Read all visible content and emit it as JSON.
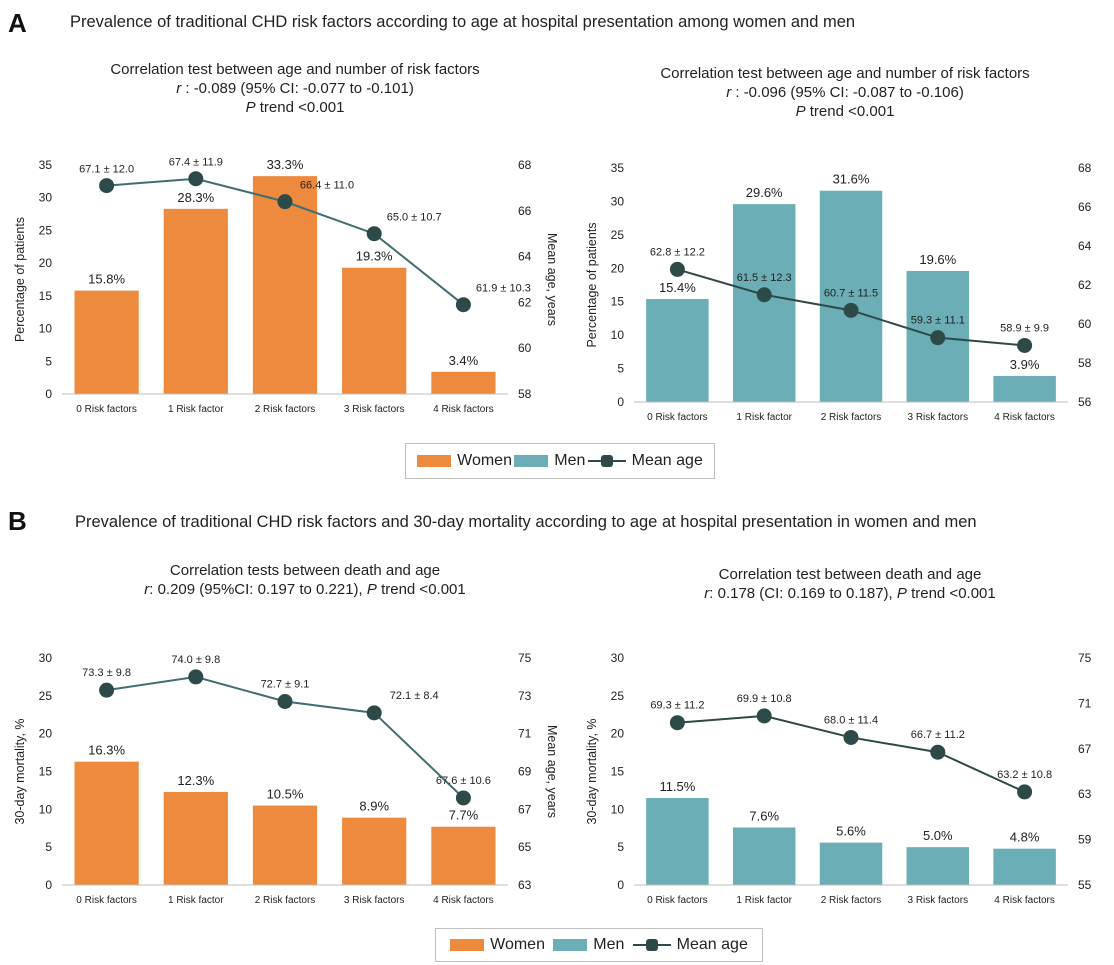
{
  "panels": {
    "a": {
      "letter": "A",
      "title": "Prevalence of traditional CHD risk factors according to age at hospital presentation among women and men",
      "women_corr": {
        "line1": "Correlation test between age and number of risk factors",
        "r_label": "r",
        "line2": " : -0.089 (95% CI: -0.077 to -0.101)",
        "p_label": "P",
        "line3": " trend <0.001"
      },
      "men_corr": {
        "line1": "Correlation test between age and number of risk factors",
        "r_label": "r",
        "line2": " : -0.096 (95% CI: -0.087 to -0.106)",
        "p_label": "P",
        "line3": " trend <0.001"
      }
    },
    "b": {
      "letter": "B",
      "title": "Prevalence of traditional CHD risk factors and 30-day mortality according to age at hospital presentation in women and men",
      "women_corr": {
        "line1": "Correlation tests between death and age",
        "r_label": "r",
        "line2": ": 0.209 (95%CI: 0.197 to 0.221), ",
        "p_label": "P",
        "line3": " trend <0.001"
      },
      "men_corr": {
        "line1": "Correlation test between death and age",
        "r_label": "r",
        "line2": ": 0.178 (CI: 0.169 to 0.187), ",
        "p_label": "P",
        "line3": " trend <0.001"
      }
    }
  },
  "legend": {
    "women": "Women",
    "men": "Men",
    "mean_age": "Mean age"
  },
  "colors": {
    "women": "#ee8a3d",
    "men": "#6baeb5",
    "mean_age_line_women": "#3f6e74",
    "mean_age_line_men": "#2d4a48",
    "marker": "#2d4a48"
  },
  "chart_data": [
    {
      "id": "a-women",
      "type": "bar",
      "categories": [
        "0 Risk factors",
        "1 Risk factor",
        "2 Risk factors",
        "3 Risk factors",
        "4 Risk factors"
      ],
      "series": [
        {
          "name": "Women",
          "values": [
            15.8,
            28.3,
            33.3,
            19.3,
            3.4
          ],
          "labels": [
            "15.8%",
            "28.3%",
            "33.3%",
            "19.3%",
            "3.4%"
          ]
        },
        {
          "name": "Mean age",
          "axis": "right",
          "values": [
            67.1,
            67.4,
            66.4,
            65.0,
            61.9
          ],
          "labels": [
            "67.1 ± 12.0",
            "67.4 ± 11.9",
            "66.4 ± 11.0",
            "65.0 ± 10.7",
            "61.9 ± 10.3"
          ]
        }
      ],
      "ylabel": "Percentage of patients",
      "ylim": [
        0,
        35
      ],
      "yticks": [
        0,
        5,
        10,
        15,
        20,
        25,
        30,
        35
      ],
      "y2label": "Mean age, years",
      "y2lim": [
        58,
        68
      ],
      "y2ticks": [
        58,
        60,
        62,
        64,
        66,
        68
      ]
    },
    {
      "id": "a-men",
      "type": "bar",
      "categories": [
        "0 Risk factors",
        "1 Risk factor",
        "2 Risk factors",
        "3 Risk factors",
        "4 Risk factors"
      ],
      "series": [
        {
          "name": "Men",
          "values": [
            15.4,
            29.6,
            31.6,
            19.6,
            3.9
          ],
          "labels": [
            "15.4%",
            "29.6%",
            "31.6%",
            "19.6%",
            "3.9%"
          ]
        },
        {
          "name": "Mean age",
          "axis": "right",
          "values": [
            62.8,
            61.5,
            60.7,
            59.3,
            58.9
          ],
          "labels": [
            "62.8 ± 12.2",
            "61.5 ± 12.3",
            "60.7 ± 11.5",
            "59.3 ± 11.1",
            "58.9 ± 9.9"
          ]
        }
      ],
      "ylabel": "Percentage of patients",
      "ylim": [
        0,
        35
      ],
      "yticks": [
        0,
        5,
        10,
        15,
        20,
        25,
        30,
        35
      ],
      "y2label": "",
      "y2lim": [
        56,
        68
      ],
      "y2ticks": [
        56,
        58,
        60,
        62,
        64,
        66,
        68
      ]
    },
    {
      "id": "b-women",
      "type": "bar",
      "categories": [
        "0 Risk factors",
        "1 Risk factor",
        "2 Risk factors",
        "3 Risk factors",
        "4 Risk factors"
      ],
      "series": [
        {
          "name": "Women",
          "values": [
            16.3,
            12.3,
            10.5,
            8.9,
            7.7
          ],
          "labels": [
            "16.3%",
            "12.3%",
            "10.5%",
            "8.9%",
            "7.7%"
          ]
        },
        {
          "name": "Mean age",
          "axis": "right",
          "values": [
            73.3,
            74.0,
            72.7,
            72.1,
            67.6
          ],
          "labels": [
            "73.3 ± 9.8",
            "74.0 ± 9.8",
            "72.7 ± 9.1",
            "72.1 ± 8.4",
            "67.6 ± 10.6"
          ]
        }
      ],
      "ylabel": "30-day mortality, %",
      "ylim": [
        0,
        30
      ],
      "yticks": [
        0,
        5,
        10,
        15,
        20,
        25,
        30
      ],
      "y2label": "Mean age, years",
      "y2lim": [
        63,
        75
      ],
      "y2ticks": [
        63,
        65,
        67,
        69,
        71,
        73,
        75
      ]
    },
    {
      "id": "b-men",
      "type": "bar",
      "categories": [
        "0 Risk factors",
        "1 Risk factor",
        "2 Risk factors",
        "3 Risk factors",
        "4 Risk factors"
      ],
      "series": [
        {
          "name": "Men",
          "values": [
            11.5,
            7.6,
            5.6,
            5.0,
            4.8
          ],
          "labels": [
            "11.5%",
            "7.6%",
            "5.6%",
            "5.0%",
            "4.8%"
          ]
        },
        {
          "name": "Mean age",
          "axis": "right",
          "values": [
            69.3,
            69.9,
            68.0,
            66.7,
            63.2
          ],
          "labels": [
            "69.3 ± 11.2",
            "69.9 ± 10.8",
            "68.0 ± 11.4",
            "66.7 ± 11.2",
            "63.2 ± 10.8"
          ]
        }
      ],
      "ylabel": "30-day mortality, %",
      "ylim": [
        0,
        30
      ],
      "yticks": [
        0,
        5,
        10,
        15,
        20,
        25,
        30
      ],
      "y2label": "",
      "y2lim": [
        55,
        75
      ],
      "y2ticks": [
        55,
        59,
        63,
        67,
        71,
        75
      ]
    }
  ]
}
